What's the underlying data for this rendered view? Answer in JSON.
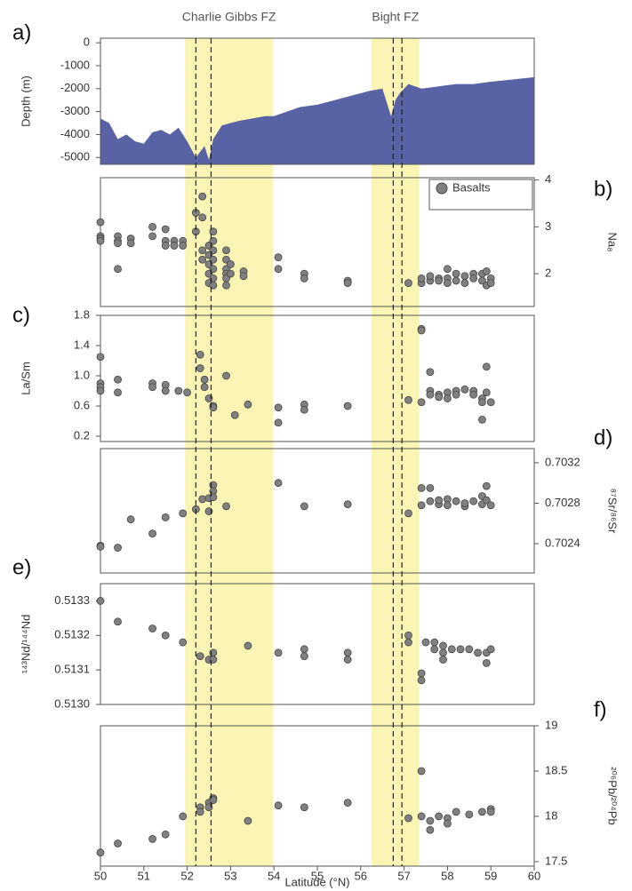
{
  "fracture_zones": [
    {
      "label": "Charlie Gibbs FZ",
      "band": [
        51.95,
        53.98
      ],
      "faults": [
        52.2,
        52.55
      ]
    },
    {
      "label": "Bight FZ",
      "band": [
        56.25,
        57.35
      ],
      "faults": [
        56.75,
        56.95
      ]
    }
  ],
  "band_color": "#fbf5b5",
  "chart_data": [
    {
      "type": "area",
      "panel_label": "a)",
      "y_label": "Depth (m)",
      "y_axis_side": "left",
      "xlim": [
        50,
        60
      ],
      "ylim": [
        -5300,
        200
      ],
      "yticks": [
        0,
        -1000,
        -2000,
        -3000,
        -4000,
        -5000
      ],
      "series": [
        {
          "color": "#5a62a6",
          "x": [
            50,
            50.2,
            50.4,
            50.6,
            50.8,
            51.0,
            51.2,
            51.4,
            51.6,
            51.8,
            52.0,
            52.2,
            52.4,
            52.5,
            52.6,
            52.8,
            53.0,
            53.2,
            53.5,
            53.8,
            54.0,
            54.3,
            54.6,
            55.0,
            55.4,
            55.8,
            56.2,
            56.5,
            56.7,
            56.8,
            56.9,
            57.1,
            57.4,
            57.8,
            58.2,
            58.6,
            59.0,
            59.5,
            60.0
          ],
          "values": [
            -3300,
            -3500,
            -4200,
            -4000,
            -4300,
            -4400,
            -3900,
            -3800,
            -4000,
            -3700,
            -4300,
            -5000,
            -4500,
            -5100,
            -4200,
            -3600,
            -3500,
            -3400,
            -3300,
            -3200,
            -3200,
            -3000,
            -2800,
            -2700,
            -2500,
            -2300,
            -2100,
            -2000,
            -3200,
            -2500,
            -2200,
            -1800,
            -2000,
            -1900,
            -1800,
            -1800,
            -1700,
            -1600,
            -1500
          ]
        }
      ]
    },
    {
      "type": "scatter",
      "panel_label": "b)",
      "y_label": "Na₈",
      "y_axis_side": "right",
      "legend": "top-right",
      "xlim": [
        50,
        60
      ],
      "ylim": [
        1.3,
        4.05
      ],
      "yticks": [
        2,
        3,
        4
      ],
      "series": [
        {
          "name": "Basalts",
          "color": "#808080",
          "x": [
            50,
            50,
            50,
            50,
            50.4,
            50.4,
            50.4,
            50.4,
            50.7,
            50.7,
            51.2,
            51.2,
            51.5,
            51.5,
            51.5,
            51.7,
            51.7,
            51.9,
            51.9,
            52.2,
            52.2,
            52.35,
            52.35,
            52.35,
            52.35,
            52.5,
            52.5,
            52.5,
            52.5,
            52.5,
            52.6,
            52.6,
            52.6,
            52.6,
            52.6,
            52.6,
            52.6,
            52.9,
            52.9,
            52.9,
            52.9,
            52.9,
            52.9,
            53.0,
            53.0,
            53.3,
            53.3,
            54.1,
            54.1,
            54.7,
            54.7,
            55.7,
            55.7,
            57.1,
            57.4,
            57.4,
            57.6,
            57.6,
            57.8,
            57.8,
            58.0,
            58.0,
            58.0,
            58.2,
            58.2,
            58.4,
            58.4,
            58.6,
            58.6,
            58.8,
            58.8,
            58.9,
            58.9,
            59.0,
            59.0
          ],
          "values": [
            3.1,
            2.8,
            2.75,
            2.7,
            2.8,
            2.7,
            2.65,
            2.1,
            2.75,
            2.65,
            3.0,
            2.8,
            2.95,
            2.7,
            2.6,
            2.7,
            2.6,
            2.7,
            2.6,
            3.3,
            2.9,
            3.65,
            3.2,
            2.5,
            2.3,
            2.6,
            2.4,
            2.2,
            2.0,
            1.8,
            2.9,
            2.7,
            2.5,
            2.3,
            2.1,
            1.9,
            1.75,
            2.5,
            2.3,
            2.1,
            2.0,
            1.9,
            1.75,
            2.2,
            2.0,
            2.05,
            1.95,
            2.35,
            2.1,
            2.0,
            1.9,
            1.85,
            1.8,
            1.8,
            1.8,
            1.9,
            1.85,
            1.95,
            1.9,
            1.85,
            2.1,
            1.9,
            1.8,
            2.0,
            1.85,
            1.95,
            1.8,
            2.0,
            1.9,
            2.0,
            1.85,
            2.05,
            1.75,
            1.9,
            1.8
          ]
        }
      ]
    },
    {
      "type": "scatter",
      "panel_label": "c)",
      "y_label": "La/Sm",
      "y_axis_side": "left",
      "xlim": [
        50,
        60
      ],
      "ylim": [
        0.13,
        1.8
      ],
      "yticks": [
        0.2,
        0.6,
        {
          "value": 1,
          "label": "1.0"
        },
        1.4,
        1.8
      ],
      "series": [
        {
          "color": "#808080",
          "x": [
            50,
            50,
            50,
            50,
            50.4,
            50.4,
            51.2,
            51.2,
            51.5,
            51.5,
            51.8,
            52.0,
            52.3,
            52.3,
            52.4,
            52.4,
            52.5,
            52.6,
            52.6,
            52.9,
            53.1,
            53.4,
            54.1,
            54.1,
            54.7,
            54.7,
            55.7,
            57.1,
            57.4,
            57.4,
            57.4,
            57.6,
            57.6,
            57.6,
            57.8,
            57.8,
            58.0,
            58.0,
            58.2,
            58.2,
            58.4,
            58.6,
            58.6,
            58.8,
            58.8,
            58.8,
            58.9,
            58.9,
            59.0
          ],
          "values": [
            1.25,
            0.9,
            0.85,
            0.8,
            0.95,
            0.78,
            0.9,
            0.85,
            0.88,
            0.8,
            0.8,
            0.78,
            1.28,
            1.1,
            0.95,
            0.85,
            0.7,
            0.6,
            0.58,
            1.0,
            0.48,
            0.62,
            0.58,
            0.38,
            0.62,
            0.55,
            0.6,
            0.68,
            1.62,
            1.6,
            0.65,
            0.8,
            1.05,
            0.75,
            0.75,
            0.72,
            0.78,
            0.7,
            0.8,
            0.75,
            0.82,
            0.8,
            0.75,
            0.7,
            0.65,
            0.42,
            1.12,
            0.78,
            0.65
          ]
        }
      ]
    },
    {
      "type": "scatter",
      "panel_label": "d)",
      "y_label": "⁸⁷Sr/⁸⁶Sr",
      "y_axis_side": "right",
      "xlim": [
        50,
        60
      ],
      "ylim": [
        0.70211,
        0.70334
      ],
      "yticks": [
        0.7024,
        0.7028,
        0.7032
      ],
      "series": [
        {
          "color": "#808080",
          "x": [
            50,
            50,
            50.4,
            50.7,
            51.2,
            51.5,
            51.9,
            52.2,
            52.35,
            52.5,
            52.5,
            52.6,
            52.6,
            52.6,
            52.9,
            54.1,
            54.7,
            55.7,
            57.1,
            57.4,
            57.4,
            57.6,
            57.6,
            57.8,
            57.8,
            58.0,
            58.0,
            58.2,
            58.4,
            58.4,
            58.6,
            58.8,
            58.8,
            58.9,
            58.9,
            59.0
          ],
          "values": [
            0.70238,
            0.70237,
            0.70236,
            0.70264,
            0.7025,
            0.70266,
            0.7027,
            0.70274,
            0.70284,
            0.70285,
            0.70272,
            0.70298,
            0.70292,
            0.70286,
            0.70277,
            0.703,
            0.70277,
            0.70279,
            0.7027,
            0.70295,
            0.70278,
            0.70295,
            0.70282,
            0.70279,
            0.70283,
            0.70284,
            0.70278,
            0.70282,
            0.70277,
            0.7028,
            0.70282,
            0.70279,
            0.70287,
            0.70297,
            0.70283,
            0.70278
          ]
        }
      ]
    },
    {
      "type": "scatter",
      "panel_label": "e)",
      "y_label": "¹⁴³Nd/¹⁴⁴Nd",
      "y_axis_side": "left",
      "xlim": [
        50,
        60
      ],
      "ylim": [
        0.513,
        0.51335
      ],
      "yticks": [
        {
          "value": 0.513,
          "label": "0.5130"
        },
        0.5131,
        0.5132,
        0.5133
      ],
      "series": [
        {
          "color": "#808080",
          "x": [
            50,
            50.4,
            51.2,
            51.5,
            51.9,
            52.3,
            52.5,
            52.6,
            52.6,
            53.4,
            54.1,
            54.7,
            54.7,
            55.7,
            55.7,
            57.1,
            57.1,
            57.4,
            57.4,
            57.5,
            57.7,
            57.7,
            57.9,
            57.9,
            57.9,
            58.1,
            58.3,
            58.5,
            58.7,
            58.9,
            58.9,
            59.0
          ],
          "values": [
            0.5133,
            0.51324,
            0.51322,
            0.5132,
            0.51318,
            0.51314,
            0.51313,
            0.51315,
            0.51313,
            0.51317,
            0.51315,
            0.51316,
            0.51314,
            0.51315,
            0.51313,
            0.5132,
            0.51318,
            0.51309,
            0.51307,
            0.51318,
            0.51318,
            0.51316,
            0.51317,
            0.51315,
            0.51313,
            0.51316,
            0.51316,
            0.51316,
            0.51315,
            0.51315,
            0.51312,
            0.51316
          ]
        }
      ]
    },
    {
      "type": "scatter",
      "panel_label": "f)",
      "y_label": "²⁰⁶Pb/²⁰⁴Pb",
      "y_axis_side": "right",
      "xlim": [
        50,
        60
      ],
      "xticks": [
        50,
        51,
        52,
        53,
        54,
        55,
        56,
        57,
        58,
        59,
        60
      ],
      "x_label": "Latitude (°N)",
      "ylim": [
        17.45,
        19
      ],
      "yticks": [
        17.5,
        18,
        18.5,
        19
      ],
      "series": [
        {
          "color": "#808080",
          "x": [
            50,
            50.4,
            51.2,
            51.5,
            51.9,
            52.3,
            52.3,
            52.5,
            52.5,
            52.6,
            52.6,
            53.4,
            54.1,
            54.7,
            55.7,
            57.1,
            57.4,
            57.4,
            57.6,
            57.6,
            57.8,
            58.0,
            58.0,
            58.2,
            58.5,
            58.8,
            59.0,
            59.0
          ],
          "values": [
            17.6,
            17.7,
            17.75,
            17.8,
            18.0,
            18.1,
            18.05,
            18.15,
            18.1,
            18.2,
            18.18,
            17.95,
            18.12,
            18.1,
            18.15,
            17.98,
            18.5,
            18.0,
            17.95,
            17.85,
            18.0,
            17.98,
            17.92,
            18.05,
            18.02,
            18.05,
            18.08,
            18.05
          ]
        }
      ]
    }
  ]
}
